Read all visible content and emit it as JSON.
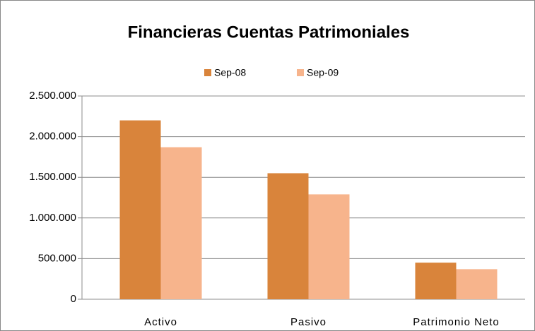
{
  "chart_data": {
    "type": "bar",
    "title": "Financieras Cuentas Patrimoniales",
    "categories": [
      "Activo",
      "Pasivo",
      "Patrimonio Neto"
    ],
    "series": [
      {
        "name": "Sep-08",
        "color": "#d9843b",
        "values": [
          2200000,
          1550000,
          450000
        ]
      },
      {
        "name": "Sep-09",
        "color": "#f7b48c",
        "values": [
          1870000,
          1290000,
          370000
        ]
      }
    ],
    "ylim": [
      0,
      2500000
    ],
    "yticks": [
      0,
      {
        "value": 500000,
        "label": "500.000"
      },
      {
        "value": 1000000,
        "label": "1.000.000"
      },
      {
        "value": 1500000,
        "label": "1.500.000"
      },
      {
        "value": 2000000,
        "label": "2.000.000"
      },
      {
        "value": 2500000,
        "label": "2.500.000"
      }
    ],
    "grid": true,
    "legend": "top"
  }
}
